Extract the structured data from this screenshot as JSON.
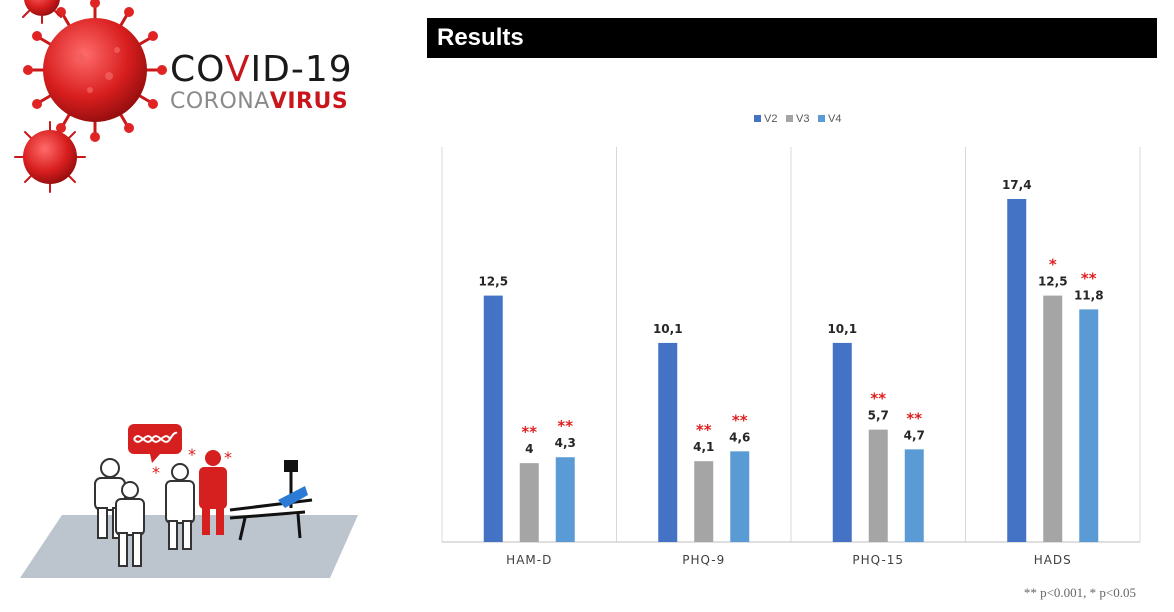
{
  "brand": {
    "title_prefix": "CO",
    "title_accent": "V",
    "title_rest": "ID-19",
    "subtitle_plain": "CORONA",
    "subtitle_accent": "VIRUS"
  },
  "header": {
    "title": "Results"
  },
  "footnote": "** p<0.001, * p<0.05",
  "colors": {
    "v2": "#4472c4",
    "v3": "#a5a5a5",
    "v4": "#5b9bd5",
    "significance": "#e02020",
    "accent_red": "#c9161d"
  },
  "icons": [
    "coronavirus-icon",
    "dna-speech-bubble-icon",
    "hospital-scene-icon"
  ],
  "chart_data": {
    "type": "bar",
    "categories": [
      "HAM-D",
      "PHQ-9",
      "PHQ-15",
      "HADS"
    ],
    "series": [
      {
        "name": "V2",
        "values": [
          12.5,
          10.1,
          10.1,
          17.4
        ],
        "labels": [
          "12,5",
          "10,1",
          "10,1",
          "17,4"
        ],
        "markers": [
          "",
          "",
          "",
          ""
        ]
      },
      {
        "name": "V3",
        "values": [
          4,
          4.1,
          5.7,
          12.5
        ],
        "labels": [
          "4",
          "4,1",
          "5,7",
          "12,5"
        ],
        "markers": [
          "**",
          "**",
          "**",
          "*"
        ]
      },
      {
        "name": "V4",
        "values": [
          4.3,
          4.6,
          4.7,
          11.8
        ],
        "labels": [
          "4,3",
          "4,6",
          "4,7",
          "11,8"
        ],
        "markers": [
          "**",
          "**",
          "**",
          "**"
        ]
      }
    ],
    "ylim": [
      0,
      20
    ],
    "legend_position": "top-center",
    "grid": false,
    "category_dividers": true
  }
}
